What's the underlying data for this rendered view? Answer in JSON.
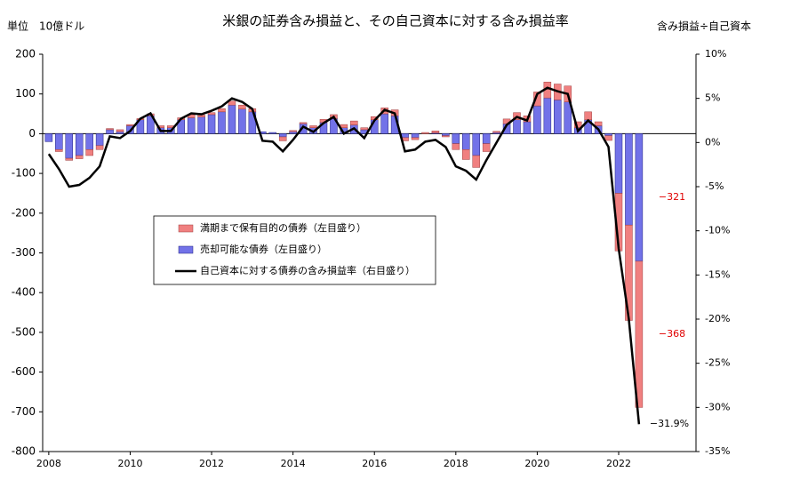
{
  "chart_data": {
    "type": "bar_line",
    "title": "米銀の証券含み損益と、その自己資本に対する含み損益率",
    "y_label": "単位　10億ドル",
    "y2_label": "含み損益÷自己資本",
    "x": [
      2008.0,
      2008.25,
      2008.5,
      2008.75,
      2009.0,
      2009.25,
      2009.5,
      2009.75,
      2010.0,
      2010.25,
      2010.5,
      2010.75,
      2011.0,
      2011.25,
      2011.5,
      2011.75,
      2012.0,
      2012.25,
      2012.5,
      2012.75,
      2013.0,
      2013.25,
      2013.5,
      2013.75,
      2014.0,
      2014.25,
      2014.5,
      2014.75,
      2015.0,
      2015.25,
      2015.5,
      2015.75,
      2016.0,
      2016.25,
      2016.5,
      2016.75,
      2017.0,
      2017.25,
      2017.5,
      2017.75,
      2018.0,
      2018.25,
      2018.5,
      2018.75,
      2019.0,
      2019.25,
      2019.5,
      2019.75,
      2020.0,
      2020.25,
      2020.5,
      2020.75,
      2021.0,
      2021.25,
      2021.5,
      2021.75,
      2022.0,
      2022.25,
      2022.5
    ],
    "series": [
      {
        "name": "満期まで保有目的の債券（左目盛り）",
        "color": "#f08080",
        "values": [
          0,
          -5,
          -5,
          -8,
          -15,
          -10,
          3,
          5,
          3,
          3,
          5,
          5,
          5,
          5,
          8,
          5,
          5,
          8,
          10,
          10,
          8,
          0,
          0,
          -10,
          3,
          3,
          5,
          8,
          10,
          8,
          10,
          5,
          8,
          15,
          15,
          -8,
          -5,
          3,
          5,
          -3,
          -15,
          -25,
          -30,
          -20,
          3,
          12,
          18,
          15,
          35,
          40,
          40,
          40,
          15,
          20,
          10,
          -12,
          -145,
          -240,
          -368
        ],
        "value_labels": [
          null,
          null,
          null,
          null,
          null,
          null,
          null,
          null,
          null,
          null,
          null,
          null,
          null,
          null,
          null,
          null,
          null,
          null,
          null,
          null,
          null,
          null,
          null,
          null,
          null,
          null,
          null,
          null,
          null,
          null,
          null,
          null,
          null,
          null,
          null,
          null,
          null,
          null,
          null,
          null,
          null,
          null,
          null,
          null,
          null,
          null,
          null,
          null,
          null,
          null,
          null,
          null,
          null,
          null,
          null,
          null,
          null,
          null,
          "−368"
        ]
      },
      {
        "name": "売却可能な債券（左目盛り）",
        "color": "#7272e8",
        "values": [
          -20,
          -40,
          -62,
          -55,
          -40,
          -30,
          10,
          5,
          20,
          35,
          45,
          15,
          15,
          35,
          40,
          42,
          48,
          55,
          72,
          62,
          55,
          5,
          3,
          -8,
          5,
          25,
          15,
          28,
          38,
          15,
          22,
          10,
          35,
          50,
          45,
          -10,
          -10,
          0,
          2,
          -5,
          -25,
          -40,
          -55,
          -25,
          3,
          25,
          35,
          30,
          70,
          90,
          85,
          80,
          15,
          35,
          20,
          -5,
          -150,
          -230,
          -321
        ],
        "value_labels": [
          null,
          null,
          null,
          null,
          null,
          null,
          null,
          null,
          null,
          null,
          null,
          null,
          null,
          null,
          null,
          null,
          null,
          null,
          null,
          null,
          null,
          null,
          null,
          null,
          null,
          null,
          null,
          null,
          null,
          null,
          null,
          null,
          null,
          null,
          null,
          null,
          null,
          null,
          null,
          null,
          null,
          null,
          null,
          null,
          null,
          null,
          null,
          null,
          null,
          null,
          null,
          null,
          null,
          null,
          null,
          null,
          null,
          null,
          "−321"
        ]
      },
      {
        "name": "自己資本に対する債券の含み損益率（右目盛り）",
        "color": "#000000",
        "axis": "y2",
        "values": [
          -1.3,
          -3,
          -5,
          -4.8,
          -4,
          -2.7,
          0.7,
          0.5,
          1.3,
          2.7,
          3.3,
          1.3,
          1.3,
          2.7,
          3.3,
          3.2,
          3.6,
          4.1,
          5,
          4.6,
          3.8,
          0.2,
          0.1,
          -1,
          0.3,
          1.8,
          1.2,
          2.2,
          2.9,
          1,
          1.6,
          0.5,
          2.5,
          3.7,
          3.3,
          -1,
          -0.8,
          0.1,
          0.3,
          -0.5,
          -2.7,
          -3.2,
          -4.2,
          -2,
          0,
          2,
          2.9,
          2.5,
          5.5,
          6.2,
          5.8,
          5.5,
          1.3,
          2.5,
          1.5,
          -0.5,
          -12,
          -20,
          -31.9
        ],
        "value_labels": [
          null,
          null,
          null,
          null,
          null,
          null,
          null,
          null,
          null,
          null,
          null,
          null,
          null,
          null,
          null,
          null,
          null,
          null,
          null,
          null,
          null,
          null,
          null,
          null,
          null,
          null,
          null,
          null,
          null,
          null,
          null,
          null,
          null,
          null,
          null,
          null,
          null,
          null,
          null,
          null,
          null,
          null,
          null,
          null,
          null,
          null,
          null,
          null,
          null,
          null,
          null,
          null,
          null,
          null,
          null,
          null,
          null,
          null,
          "−31.9%"
        ]
      }
    ],
    "value_label_colors": [
      "#e00000",
      "#e00000",
      "#000000"
    ],
    "xlim": [
      2007.85,
      2023.9
    ],
    "xticks": [
      2008,
      2010,
      2012,
      2014,
      2016,
      2018,
      2020,
      2022
    ],
    "ylim": [
      -800,
      200
    ],
    "yticks": [
      200,
      100,
      0,
      -100,
      -200,
      -300,
      -400,
      -500,
      -600,
      -700,
      -800
    ],
    "y2lim": [
      -35,
      10
    ],
    "y2ticks": [
      {
        "value": 10,
        "label": "10%"
      },
      {
        "value": 5,
        "label": "5%"
      },
      {
        "value": 0,
        "label": "0%"
      },
      {
        "value": -5,
        "label": "-5%"
      },
      {
        "value": -10,
        "label": "-10%"
      },
      {
        "value": -15,
        "label": "-15%"
      },
      {
        "value": -20,
        "label": "-20%"
      },
      {
        "value": -25,
        "label": "-25%"
      },
      {
        "value": -30,
        "label": "-30%"
      },
      {
        "value": -35,
        "label": "-35%"
      }
    ],
    "legend": "center-left"
  }
}
